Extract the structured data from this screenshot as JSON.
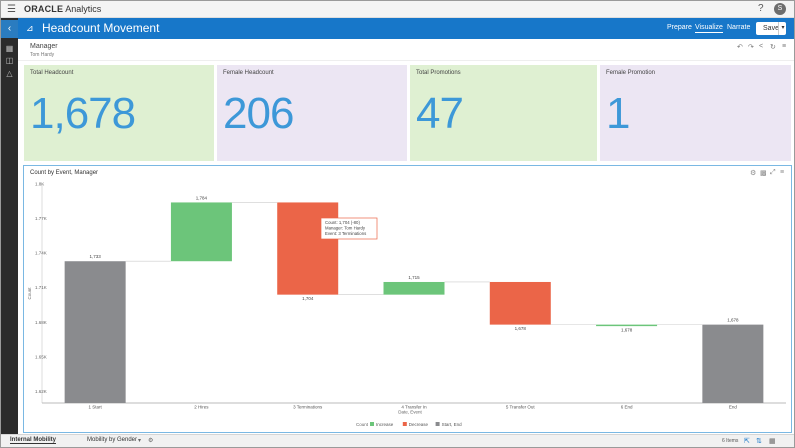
{
  "topbar": {
    "brand": "ORACLE",
    "product": "Analytics",
    "help": "?",
    "avatar": "S"
  },
  "header": {
    "title": "Headcount Movement",
    "tabs": [
      "Prepare",
      "Visualize",
      "Narrate"
    ],
    "active_tab": "Visualize",
    "save_label": "Save"
  },
  "filter": {
    "label": "Manager",
    "value": "Tom Hardy"
  },
  "cards": [
    {
      "title": "Total Headcount",
      "value": "1,678",
      "bg": "#dff0d2"
    },
    {
      "title": "Female Headcount",
      "value": "206",
      "bg": "#ece6f3"
    },
    {
      "title": "Total Promotions",
      "value": "47",
      "bg": "#dff0d2"
    },
    {
      "title": "Female Promotion",
      "value": "1",
      "bg": "#ece6f3"
    }
  ],
  "chart": {
    "title": "Count by Event, Manager"
  },
  "chart_data": {
    "type": "waterfall",
    "ylabel": "Count",
    "xlabel": "Date, Event",
    "ylim": [
      1610,
      1800
    ],
    "yticks": [
      "1.8K",
      "1.77K",
      "1.74K",
      "1.71K",
      "1.68K",
      "1.65K",
      "1.62K"
    ],
    "ytick_values": [
      1800,
      1770,
      1740,
      1710,
      1680,
      1650,
      1620
    ],
    "categories": [
      "1 Start",
      "2 Hires",
      "3 Terminations",
      "4 Transfer In",
      "5 Transfer Out",
      "6 End",
      "End"
    ],
    "bars": [
      {
        "kind": "start_end",
        "start": 1610,
        "end": 1733,
        "label": "1,733",
        "label_pos": "top"
      },
      {
        "kind": "increase",
        "start": 1733,
        "end": 1784,
        "label": "1,784",
        "label_pos": "top"
      },
      {
        "kind": "decrease",
        "start": 1784,
        "end": 1704,
        "label": "1,704",
        "label_pos": "bottom"
      },
      {
        "kind": "increase",
        "start": 1704,
        "end": 1715,
        "label": "1,715",
        "label_pos": "top"
      },
      {
        "kind": "decrease",
        "start": 1715,
        "end": 1678,
        "label": "1,678",
        "label_pos": "bottom"
      },
      {
        "kind": "increase",
        "start": 1678,
        "end": 1678,
        "label": "1,678",
        "label_pos": "bottom"
      },
      {
        "kind": "start_end",
        "start": 1610,
        "end": 1678,
        "label": "1,678",
        "label_pos": "top"
      }
    ],
    "legend": {
      "title": "Count",
      "items": [
        {
          "name": "Increase",
          "color": "#6cc57a"
        },
        {
          "name": "Decrease",
          "color": "#eb6548"
        },
        {
          "name": "Start, End",
          "color": "#8a8b8e"
        }
      ],
      "placement": "bottom"
    },
    "tooltip": {
      "lines": [
        "Count: 1,704 (-80)",
        "Manager: Tom Hardy",
        "Event: 3 Terminations"
      ]
    },
    "colors": {
      "increase": "#6cc57a",
      "decrease": "#eb6548",
      "start_end": "#8a8b8e"
    }
  },
  "footer": {
    "tabs": [
      "Internal Mobility",
      "Mobility by Gender"
    ],
    "active_tab": "Internal Mobility",
    "items_text": "6 Items"
  }
}
